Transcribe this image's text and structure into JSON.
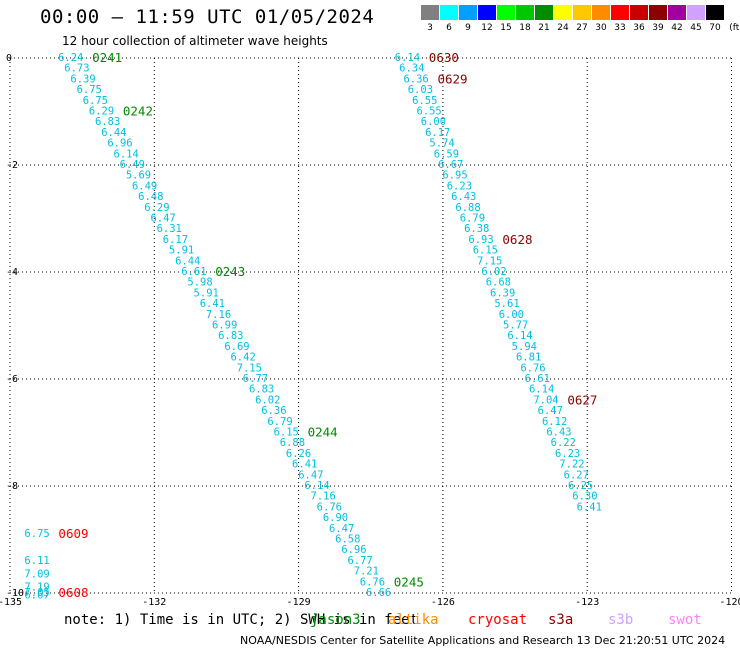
{
  "header": {
    "title": "00:00 – 11:59 UTC 01/05/2024",
    "subtitle": "12 hour collection of altimeter wave heights"
  },
  "legend": {
    "unit": "(ft)",
    "items": [
      {
        "label": "3",
        "color": "#808080"
      },
      {
        "label": "6",
        "color": "#00ffff"
      },
      {
        "label": "9",
        "color": "#00a0ff"
      },
      {
        "label": "12",
        "color": "#0000ff"
      },
      {
        "label": "15",
        "color": "#00ff00"
      },
      {
        "label": "18",
        "color": "#00c800"
      },
      {
        "label": "21",
        "color": "#008c00"
      },
      {
        "label": "24",
        "color": "#ffff00"
      },
      {
        "label": "27",
        "color": "#ffc800"
      },
      {
        "label": "30",
        "color": "#ff8c00"
      },
      {
        "label": "33",
        "color": "#ff0000"
      },
      {
        "label": "36",
        "color": "#c80000"
      },
      {
        "label": "39",
        "color": "#8c0000"
      },
      {
        "label": "42",
        "color": "#a000a0"
      },
      {
        "label": "45",
        "color": "#d2a0ff"
      },
      {
        "label": "70",
        "color": "#000000"
      }
    ]
  },
  "map": {
    "lon_ticks": [
      "-135",
      "-132",
      "-129",
      "-126",
      "-123",
      "-120"
    ],
    "lat_ticks": [
      "0",
      "-2",
      "-4",
      "-6",
      "-8",
      "-10"
    ],
    "wave_color": "#00c0e0",
    "tracks": [
      {
        "lon_start": -134.0,
        "lat_start": 0.0,
        "lon_step": 0.128,
        "lat_step": -0.2,
        "values": [
          "6.24",
          "6.73",
          "6.39",
          "6.75",
          "6.75",
          "6.29",
          "6.83",
          "6.44",
          "6.96",
          "6.14",
          "6.49",
          "5.69",
          "6.49",
          "6.48",
          "6.29",
          "6.47",
          "6.31",
          "6.17",
          "5.91",
          "6.44",
          "6.61",
          "5.98",
          "5.91",
          "6.41",
          "7.16",
          "6.99",
          "6.83",
          "6.69",
          "6.42",
          "7.15",
          "6.77",
          "6.83",
          "6.02",
          "6.36",
          "6.79",
          "6.15",
          "6.88",
          "6.26",
          "6.41",
          "6.47",
          "6.14",
          "7.16",
          "6.76",
          "6.90",
          "6.47",
          "6.58",
          "6.96",
          "6.77",
          "7.21",
          "6.76",
          "6.66"
        ],
        "labels": [
          {
            "text": "0241",
            "idx": 0,
            "color": "#008c00"
          },
          {
            "text": "0242",
            "idx": 5,
            "color": "#008c00"
          },
          {
            "text": "0243",
            "idx": 20,
            "color": "#008c00"
          },
          {
            "text": "0244",
            "idx": 35,
            "color": "#008c00"
          },
          {
            "text": "0245",
            "idx": 49,
            "color": "#008c00"
          }
        ]
      },
      {
        "lon_start": -127.0,
        "lat_start": 0.0,
        "lon_step": 0.09,
        "lat_step": -0.2,
        "values": [
          "6.14",
          "6.34",
          "6.36",
          "6.03",
          "6.55",
          "6.55",
          "6.00",
          "6.17",
          "5.74",
          "6.59",
          "6.67",
          "6.95",
          "6.23",
          "6.43",
          "6.88",
          "6.79",
          "6.38",
          "6.93",
          "6.15",
          "7.15",
          "6.02",
          "6.68",
          "6.39",
          "5.61",
          "6.00",
          "5.77",
          "6.14",
          "5.94",
          "6.81",
          "6.76",
          "6.61",
          "6.14",
          "7.04",
          "6.47",
          "6.12",
          "6.43",
          "6.22",
          "6.23",
          "7.22",
          "6.27",
          "6.25",
          "6.30",
          "6.41"
        ],
        "labels": [
          {
            "text": "0630",
            "idx": 0,
            "color": "#8c0000"
          },
          {
            "text": "0629",
            "idx": 2,
            "color": "#8c0000"
          },
          {
            "text": "0628",
            "idx": 17,
            "color": "#8c0000"
          },
          {
            "text": "0627",
            "idx": 32,
            "color": "#8c0000"
          }
        ]
      },
      {
        "lon_start": -134.7,
        "lat_start": -8.9,
        "lon_step": 0.0,
        "lat_step": -0.25,
        "values": [
          "6.75"
        ],
        "labels": [
          {
            "text": "0609",
            "idx": 0,
            "color": "#ff0000"
          }
        ]
      },
      {
        "lon_start": -134.7,
        "lat_start": -9.4,
        "lon_step": 0.0,
        "lat_step": -0.25,
        "values": [
          "6.11",
          "7.09",
          "7.19"
        ],
        "labels": []
      },
      {
        "lon_start": -134.7,
        "lat_start": -10.0,
        "lon_step": 0.0,
        "lat_step": -0.05,
        "values": [
          "7.05",
          "6.67"
        ],
        "labels": [
          {
            "text": "0608",
            "idx": 0,
            "color": "#ff0000"
          }
        ]
      }
    ]
  },
  "footer": {
    "note": "note: 1) Time is in UTC; 2) SWH is in feet",
    "satellites": [
      {
        "name": "jason3",
        "color": "#008c00"
      },
      {
        "name": "altika",
        "color": "#ff8c00"
      },
      {
        "name": "cryosat",
        "color": "#ff0000"
      },
      {
        "name": "s3a",
        "color": "#8c0000"
      },
      {
        "name": "s3b",
        "color": "#d2a0ff"
      },
      {
        "name": "swot",
        "color": "#ff80ff"
      }
    ],
    "credit": "NOAA/NESDIS Center for Satellite Applications and Research    13 Dec 21:20:51 UTC 2024"
  }
}
